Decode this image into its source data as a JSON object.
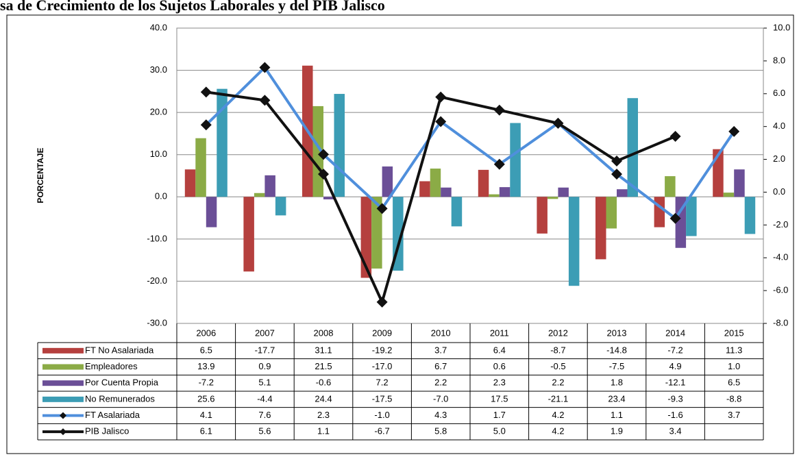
{
  "chart_data": {
    "type": "bar_line",
    "title": "sa de Crecimiento de los Sujetos Laborales y del PIB Jalisco",
    "y_label": "PORCENTAJE",
    "categories": [
      "2006",
      "2007",
      "2008",
      "2009",
      "2010",
      "2011",
      "2012",
      "2013",
      "2014",
      "2015"
    ],
    "series": [
      {
        "name": "FT No Asalariada",
        "color": "#b5403e",
        "values": [
          6.5,
          -17.7,
          31.1,
          -19.2,
          3.7,
          6.4,
          -8.7,
          -14.8,
          -7.2,
          11.3
        ],
        "value_labels": [
          "6.5",
          "-17.7",
          "31.1",
          "-19.2",
          "3.7",
          "6.4",
          "-8.7",
          "-14.8",
          "-7.2",
          "11.3"
        ]
      },
      {
        "name": "Empleadores",
        "color": "#8bab46",
        "values": [
          13.9,
          0.9,
          21.5,
          -17.0,
          6.7,
          0.6,
          -0.5,
          -7.5,
          4.9,
          1.0
        ],
        "value_labels": [
          "13.9",
          "0.9",
          "21.5",
          "-17.0",
          "6.7",
          "0.6",
          "-0.5",
          "-7.5",
          "4.9",
          "1.0"
        ]
      },
      {
        "name": "Por Cuenta Propia",
        "color": "#6b4f97",
        "values": [
          -7.2,
          5.1,
          -0.6,
          7.2,
          2.2,
          2.3,
          2.2,
          1.8,
          -12.1,
          6.5
        ],
        "value_labels": [
          "-7.2",
          "5.1",
          "-0.6",
          "7.2",
          "2.2",
          "2.3",
          "2.2",
          "1.8",
          "-12.1",
          "6.5"
        ]
      },
      {
        "name": "No Remunerados",
        "color": "#3c9db5",
        "values": [
          25.6,
          -4.4,
          24.4,
          -17.5,
          -7.0,
          17.5,
          -21.1,
          23.4,
          -9.3,
          -8.8
        ],
        "value_labels": [
          "25.6",
          "-4.4",
          "24.4",
          "-17.5",
          "-7.0",
          "17.5",
          "-21.1",
          "23.4",
          "-9.3",
          "-8.8"
        ]
      },
      {
        "name": "FT Asalariada",
        "color": "#4f8fdc",
        "axis": "y2",
        "values": [
          4.1,
          7.6,
          2.3,
          -1.0,
          4.3,
          1.7,
          4.2,
          1.1,
          -1.6,
          3.7
        ],
        "value_labels": [
          "4.1",
          "7.6",
          "2.3",
          "-1.0",
          "4.3",
          "1.7",
          "4.2",
          "1.1",
          "-1.6",
          "3.7"
        ]
      },
      {
        "name": "PIB Jalisco",
        "color": "#111111",
        "axis": "y2",
        "values": [
          6.1,
          5.6,
          1.1,
          -6.7,
          5.8,
          5.0,
          4.2,
          1.9,
          3.4,
          null
        ],
        "value_labels": [
          "6.1",
          "5.6",
          "1.1",
          "-6.7",
          "5.8",
          "5.0",
          "4.2",
          "1.9",
          "3.4",
          null
        ]
      }
    ],
    "ylim": [
      -30,
      40
    ],
    "yticks": [
      {
        "value": 40,
        "label": "40.0"
      },
      {
        "value": 30,
        "label": "30.0"
      },
      {
        "value": 20,
        "label": "20.0"
      },
      {
        "value": 10,
        "label": "10.0"
      },
      {
        "value": 0,
        "label": "0.0"
      },
      {
        "value": -10,
        "label": "-10.0"
      },
      {
        "value": -20,
        "label": "-20.0"
      },
      {
        "value": -30,
        "label": "-30.0"
      }
    ],
    "y2lim": [
      -8,
      10
    ],
    "y2ticks": [
      {
        "value": 10,
        "label": "10.0"
      },
      {
        "value": 8,
        "label": "8.0"
      },
      {
        "value": 6,
        "label": "6.0"
      },
      {
        "value": 4,
        "label": "4.0"
      },
      {
        "value": 2,
        "label": "2.0"
      },
      {
        "value": 0,
        "label": "0.0"
      },
      {
        "value": -2,
        "label": "-2.0"
      },
      {
        "value": -4,
        "label": "-4.0"
      },
      {
        "value": -6,
        "label": "-6.0"
      },
      {
        "value": -8,
        "label": "-8.0"
      }
    ],
    "grid": true,
    "legend": "table"
  }
}
